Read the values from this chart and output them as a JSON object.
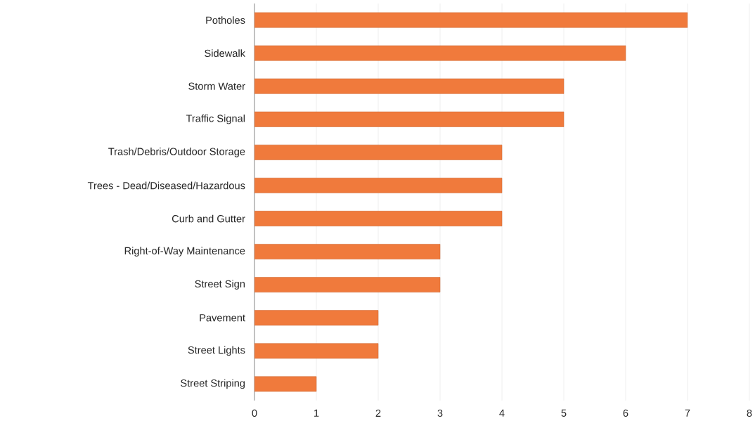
{
  "chart_data": {
    "type": "bar",
    "orientation": "horizontal",
    "categories": [
      "Potholes",
      "Sidewalk",
      "Storm Water",
      "Traffic Signal",
      "Trash/Debris/Outdoor Storage",
      "Trees - Dead/Diseased/Hazardous",
      "Curb and Gutter",
      "Right-of-Way Maintenance",
      "Street Sign",
      "Pavement",
      "Street Lights",
      "Street Striping"
    ],
    "values": [
      7,
      6,
      5,
      5,
      4,
      4,
      4,
      3,
      3,
      2,
      2,
      1
    ],
    "color": "#f07a3c",
    "xlim": [
      0,
      8
    ],
    "xticks": [
      0,
      1,
      2,
      3,
      4,
      5,
      6,
      7,
      8
    ],
    "grid": "x"
  }
}
